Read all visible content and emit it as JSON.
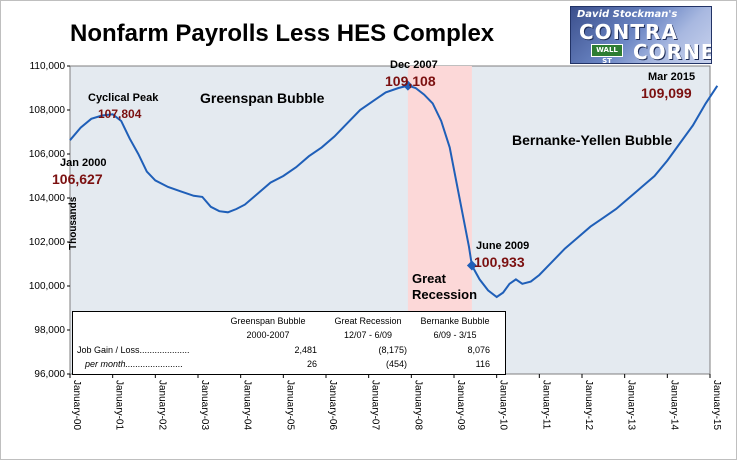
{
  "chart_data": {
    "type": "line",
    "title": "Nonfarm Payrolls Less HES Complex",
    "ylabel": "Thousands",
    "xlabel": "",
    "ylim": [
      96000,
      110000
    ],
    "y_ticks": [
      "96,000",
      "98,000",
      "100,000",
      "102,000",
      "104,000",
      "106,000",
      "108,000",
      "110,000"
    ],
    "x_ticks": [
      "January-00",
      "January-01",
      "January-02",
      "January-03",
      "January-04",
      "January-05",
      "January-06",
      "January-07",
      "January-08",
      "January-09",
      "January-10",
      "January-11",
      "January-12",
      "January-13",
      "January-14",
      "January-15"
    ],
    "grid": false,
    "series": [
      {
        "values_by_year_fraction": [
          [
            2000.0,
            106627
          ],
          [
            2000.25,
            107200
          ],
          [
            2000.5,
            107600
          ],
          [
            2000.75,
            107750
          ],
          [
            2001.0,
            107804
          ],
          [
            2001.2,
            107500
          ],
          [
            2001.4,
            106700
          ],
          [
            2001.6,
            106000
          ],
          [
            2001.8,
            105200
          ],
          [
            2002.0,
            104800
          ],
          [
            2002.3,
            104500
          ],
          [
            2002.6,
            104300
          ],
          [
            2002.9,
            104100
          ],
          [
            2003.1,
            104050
          ],
          [
            2003.3,
            103600
          ],
          [
            2003.5,
            103400
          ],
          [
            2003.7,
            103350
          ],
          [
            2003.9,
            103500
          ],
          [
            2004.1,
            103700
          ],
          [
            2004.4,
            104200
          ],
          [
            2004.7,
            104700
          ],
          [
            2005.0,
            105000
          ],
          [
            2005.3,
            105400
          ],
          [
            2005.6,
            105900
          ],
          [
            2005.9,
            106300
          ],
          [
            2006.2,
            106800
          ],
          [
            2006.5,
            107400
          ],
          [
            2006.8,
            108000
          ],
          [
            2007.1,
            108400
          ],
          [
            2007.4,
            108800
          ],
          [
            2007.7,
            109000
          ],
          [
            2007.92,
            109108
          ],
          [
            2008.1,
            109000
          ],
          [
            2008.3,
            108700
          ],
          [
            2008.5,
            108300
          ],
          [
            2008.7,
            107500
          ],
          [
            2008.9,
            106300
          ],
          [
            2009.05,
            104800
          ],
          [
            2009.2,
            103300
          ],
          [
            2009.35,
            101800
          ],
          [
            2009.42,
            100933
          ],
          [
            2009.6,
            100300
          ],
          [
            2009.8,
            99800
          ],
          [
            2010.0,
            99500
          ],
          [
            2010.15,
            99700
          ],
          [
            2010.3,
            100100
          ],
          [
            2010.45,
            100300
          ],
          [
            2010.6,
            100100
          ],
          [
            2010.8,
            100200
          ],
          [
            2011.0,
            100500
          ],
          [
            2011.3,
            101100
          ],
          [
            2011.6,
            101700
          ],
          [
            2011.9,
            102200
          ],
          [
            2012.2,
            102700
          ],
          [
            2012.5,
            103100
          ],
          [
            2012.8,
            103500
          ],
          [
            2013.1,
            104000
          ],
          [
            2013.4,
            104500
          ],
          [
            2013.7,
            105000
          ],
          [
            2014.0,
            105700
          ],
          [
            2014.3,
            106500
          ],
          [
            2014.6,
            107300
          ],
          [
            2014.9,
            108300
          ],
          [
            2015.17,
            109099
          ]
        ]
      }
    ],
    "recession_shading": {
      "start": 2007.92,
      "end": 2009.42,
      "color": "#fcd8d8"
    },
    "annotations": {
      "jan2000_label": "Jan 2000",
      "jan2000_value": "106,627",
      "peak_label": "Cyclical Peak",
      "peak_value": "107,804",
      "greenspan": "Greenspan Bubble",
      "dec2007_label": "Dec 2007",
      "dec2007_value": "109,108",
      "june2009_label": "June 2009",
      "june2009_value": "100,933",
      "great": "Great",
      "recession": "Recession",
      "bernanke": "Bernanke-Yellen Bubble",
      "mar2015_label": "Mar 2015",
      "mar2015_value": "109,099"
    },
    "colors": {
      "line": "#1f5fb8",
      "plot_bg": "#e4eaf0",
      "recession": "#fcd8d8",
      "value_text": "#7b1010"
    }
  },
  "table": {
    "headers": [
      "Greenspan Bubble",
      "Great Recession",
      "Bernanke Bubble"
    ],
    "periods": [
      "2000-2007",
      "12/07 - 6/09",
      "6/09 - 3/15"
    ],
    "row1_label": "Job Gain / Loss....................",
    "row1_values": [
      "2,481",
      "(8,175)",
      "8,076"
    ],
    "row2_label": "per month.......................",
    "row2_values": [
      "26",
      "(454)",
      "116"
    ]
  },
  "logo": {
    "line1": "David Stockman's",
    "line2": "CONTRA",
    "line3": "CORNER",
    "sign": "WALL ST"
  }
}
